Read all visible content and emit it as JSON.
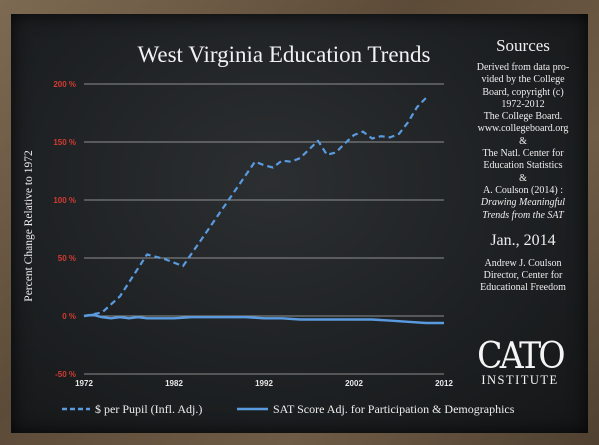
{
  "colors": {
    "series_cost": "#5a9be0",
    "series_sat": "#5a9be0",
    "y_tick_text": "#d33b32",
    "chalk": "#eeeeee",
    "board": "#1e2123"
  },
  "sidebar": {
    "heading": "Sources",
    "lines": [
      {
        "text": "Derived from data pro-",
        "italic": false
      },
      {
        "text": "vided by the College",
        "italic": false
      },
      {
        "text": "Board, copyright (c)",
        "italic": false
      },
      {
        "text": "1972-2012",
        "italic": false
      },
      {
        "text": "The College Board.",
        "italic": false
      },
      {
        "text": "www.collegeboard.org",
        "italic": false
      },
      {
        "text": "&",
        "italic": false
      },
      {
        "text": "The Natl. Center for",
        "italic": false
      },
      {
        "text": "Education Statistics",
        "italic": false
      },
      {
        "text": "&",
        "italic": false
      },
      {
        "text": "A. Coulson (2014) :",
        "italic": false
      },
      {
        "text": "Drawing Meaningful",
        "italic": true
      },
      {
        "text": "Trends from the SAT",
        "italic": true
      }
    ],
    "date": "Jan., 2014",
    "author_lines": [
      "Andrew J. Coulson",
      "Director, Center for",
      "Educational Freedom"
    ]
  },
  "logo": {
    "word": "CATO",
    "sub": "INSTITUTE"
  },
  "chart_data": {
    "type": "line",
    "title": "West Virginia Education Trends",
    "xlabel": "",
    "ylabel": "Percent Change Relative to 1972",
    "xlim": [
      1972,
      2012
    ],
    "ylim": [
      -50,
      200
    ],
    "x_ticks": [
      1972,
      1982,
      1992,
      2002,
      2012
    ],
    "y_ticks": [
      -50,
      0,
      50,
      100,
      150,
      200
    ],
    "y_tick_labels": [
      "-50 %",
      "0 %",
      "50 %",
      "100 %",
      "150 %",
      "200 %"
    ],
    "grid": "horizontal",
    "legend_position": "bottom",
    "series": [
      {
        "name": "$ per Pupil (Infl. Adj.)",
        "style": "dashed",
        "x": [
          1972,
          1974,
          1976,
          1979,
          1981,
          1983,
          1987,
          1991,
          1992,
          1993,
          1994,
          1995,
          1996,
          1998,
          1999,
          2000,
          2001,
          2002,
          2003,
          2004,
          2005,
          2006,
          2007,
          2008,
          2009,
          2010
        ],
        "y": [
          0,
          3,
          17,
          53,
          49,
          43,
          88,
          133,
          130,
          128,
          134,
          133,
          136,
          151,
          139,
          141,
          149,
          156,
          159,
          153,
          155,
          154,
          157,
          167,
          180,
          188
        ]
      },
      {
        "name": "SAT Score Adj. for Participation & Demographics",
        "style": "solid",
        "x": [
          1972,
          1973,
          1974,
          1975,
          1976,
          1977,
          1978,
          1979,
          1980,
          1981,
          1982,
          1984,
          1986,
          1988,
          1990,
          1992,
          1994,
          1996,
          1998,
          2000,
          2002,
          2004,
          2006,
          2008,
          2010,
          2012
        ],
        "y": [
          0,
          1,
          -1,
          -2,
          -1,
          -2,
          -1,
          -2,
          -2,
          -2,
          -2,
          -1,
          -1,
          -1,
          -1,
          -2,
          -2,
          -3,
          -3,
          -3,
          -3,
          -3,
          -4,
          -5,
          -6,
          -6
        ]
      }
    ]
  }
}
